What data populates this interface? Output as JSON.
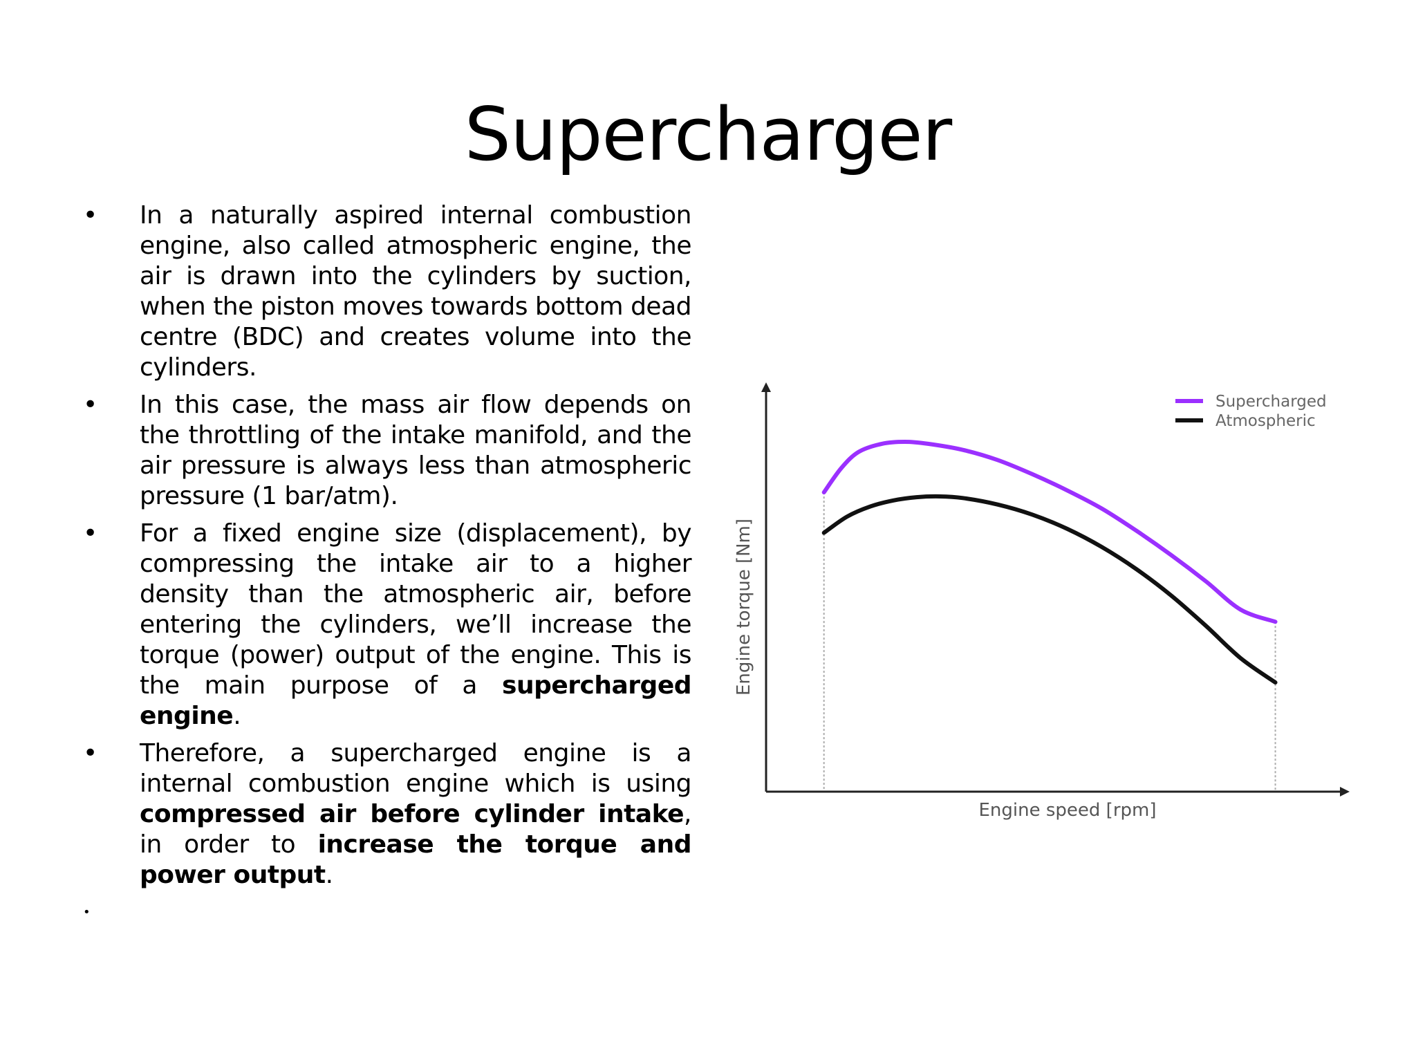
{
  "slide": {
    "title": "Supercharger"
  },
  "bullets": [
    {
      "segments": [
        {
          "text": "In a naturally aspired internal combustion engine, also called atmospheric engine, the air is drawn into the cylinders by suction, when the piston moves towards bottom dead centre (BDC) and creates volume into the cylinders.",
          "bold": false
        }
      ]
    },
    {
      "segments": [
        {
          "text": "In this case, the mass air flow depends on the throttling of the intake manifold, and the air pressure is always less than atmospheric pressure (1 bar/atm).",
          "bold": false
        }
      ]
    },
    {
      "segments": [
        {
          "text": "For a fixed engine size (displacement), by compressing the intake air to a higher density than the atmospheric air, before entering the cylinders, we’ll increase the torque (power) output of the engine. This is the main purpose of a ",
          "bold": false
        },
        {
          "text": "supercharged engine",
          "bold": true
        },
        {
          "text": ".",
          "bold": false
        }
      ]
    },
    {
      "segments": [
        {
          "text": "Therefore, a supercharged engine is a internal combustion engine which is using ",
          "bold": false
        },
        {
          "text": "compressed air before cylinder intake",
          "bold": true
        },
        {
          "text": ", in order to ",
          "bold": false
        },
        {
          "text": "increase the torque and power output",
          "bold": true
        },
        {
          "text": ".",
          "bold": false
        }
      ]
    }
  ],
  "bullet_symbol": "•",
  "chart_data": {
    "type": "line",
    "title": "",
    "xlabel": "Engine speed [rpm]",
    "ylabel": "Engine torque [Nm]",
    "xlim": [
      0,
      100
    ],
    "ylim": [
      0,
      100
    ],
    "axis_ticks": "none",
    "grid": false,
    "legend_position": "top-right",
    "colors": {
      "Supercharged": "#9b30ff",
      "Atmospheric": "#111111",
      "axis": "#222222",
      "guide": "#aaaaaa"
    },
    "series": [
      {
        "name": "Supercharged",
        "x": [
          10,
          13,
          16,
          20,
          24,
          28,
          34,
          40,
          46,
          52,
          58,
          64,
          70,
          76,
          82,
          88
        ],
        "y": [
          74,
          80,
          84,
          86,
          86.5,
          86,
          84.5,
          82,
          78.5,
          74.5,
          70,
          64.5,
          58.5,
          52,
          45,
          42
        ]
      },
      {
        "name": "Atmospheric",
        "x": [
          10,
          14,
          18,
          22,
          26,
          30,
          34,
          40,
          46,
          52,
          58,
          64,
          70,
          76,
          82,
          88
        ],
        "y": [
          64,
          68,
          70.5,
          72,
          72.8,
          73,
          72.6,
          71,
          68.5,
          65,
          60.5,
          55,
          48.5,
          41,
          33,
          27
        ]
      }
    ],
    "guides_x": [
      10,
      88
    ]
  }
}
